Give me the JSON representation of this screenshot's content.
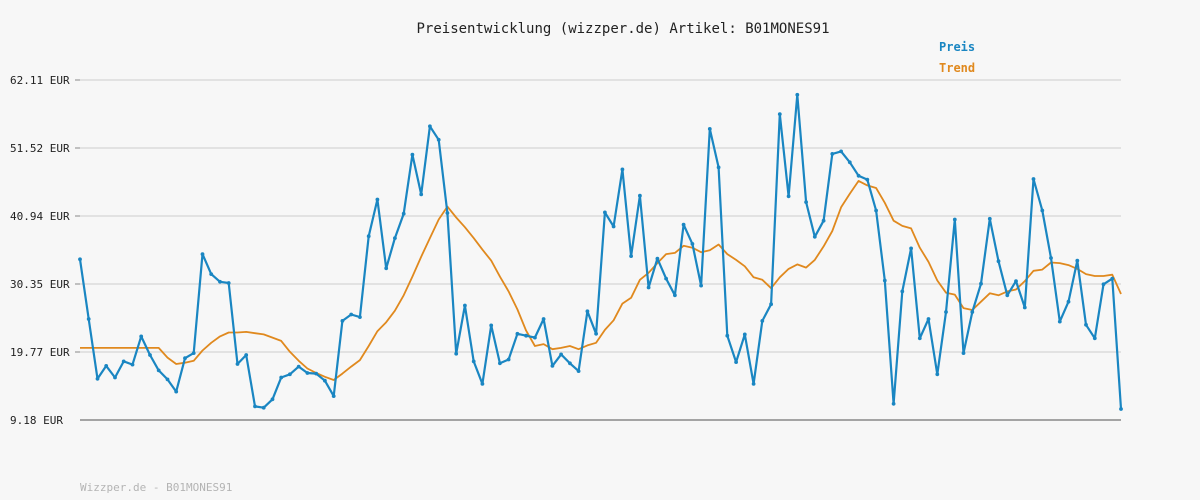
{
  "chart_data": {
    "type": "line",
    "title": "Preisentwicklung (wizzper.de) Artikel: B01MONES91",
    "footer": "Wizzper.de - B01MONES91",
    "y_ticks": [
      "62.11 EUR",
      "51.52 EUR",
      "40.94 EUR",
      "30.35 EUR",
      "19.77 EUR",
      "9.18 EUR"
    ],
    "ylim": [
      9.18,
      62.11
    ],
    "grid": true,
    "legend_position": "top-right",
    "colors": {
      "price": "#1a86c2",
      "trend": "#e0891e",
      "grid": "#e2e2e2",
      "axis": "#888888"
    },
    "series": [
      {
        "key": "price",
        "name": "Preis",
        "values": [
          34.2,
          24.9,
          15.6,
          17.6,
          15.8,
          18.3,
          17.8,
          22.2,
          19.3,
          16.9,
          15.5,
          13.6,
          18.8,
          19.6,
          35.0,
          31.9,
          30.7,
          30.5,
          17.9,
          19.3,
          11.3,
          11.1,
          12.4,
          15.8,
          16.3,
          17.5,
          16.5,
          16.4,
          15.3,
          12.9,
          24.6,
          25.6,
          25.2,
          37.8,
          43.5,
          32.8,
          37.5,
          41.3,
          50.5,
          44.3,
          54.9,
          52.8,
          41.4,
          19.5,
          27.0,
          18.3,
          14.8,
          23.9,
          18.0,
          18.6,
          22.6,
          22.3,
          22.0,
          24.9,
          17.6,
          19.4,
          18.0,
          16.8,
          26.1,
          22.6,
          41.5,
          39.3,
          48.2,
          34.7,
          44.1,
          29.8,
          34.3,
          31.2,
          28.6,
          39.6,
          36.6,
          30.1,
          54.5,
          48.5,
          22.3,
          18.2,
          22.5,
          14.8,
          24.6,
          27.2,
          56.8,
          44.0,
          59.8,
          43.1,
          37.7,
          40.2,
          50.6,
          51.0,
          49.3,
          47.2,
          46.6,
          41.8,
          30.9,
          11.7,
          29.2,
          35.9,
          21.9,
          24.9,
          16.3,
          26.0,
          40.4,
          19.6,
          26.0,
          30.4,
          40.5,
          33.9,
          28.6,
          30.8,
          26.7,
          46.7,
          41.8,
          34.4,
          24.5,
          27.6,
          34.0,
          24.0,
          21.9,
          30.3,
          31.2,
          10.9
        ]
      },
      {
        "key": "trend",
        "name": "Trend",
        "values": [
          20.4,
          20.4,
          20.4,
          20.4,
          20.4,
          20.4,
          20.4,
          20.4,
          20.4,
          20.4,
          18.9,
          17.9,
          18.1,
          18.4,
          20.0,
          21.2,
          22.2,
          22.8,
          22.8,
          22.9,
          22.7,
          22.5,
          22.0,
          21.5,
          19.8,
          18.4,
          17.2,
          16.5,
          15.9,
          15.4,
          16.4,
          17.5,
          18.5,
          20.7,
          23.0,
          24.4,
          26.2,
          28.6,
          31.5,
          34.6,
          37.5,
          40.4,
          42.4,
          40.7,
          39.2,
          37.5,
          35.7,
          34.0,
          31.5,
          29.2,
          26.4,
          23.1,
          20.7,
          21.0,
          20.2,
          20.4,
          20.7,
          20.2,
          20.8,
          21.2,
          23.2,
          24.7,
          27.3,
          28.2,
          31.0,
          32.1,
          33.6,
          35.0,
          35.2,
          36.3,
          36.0,
          35.3,
          35.6,
          36.5,
          35.0,
          34.1,
          33.1,
          31.4,
          31.0,
          29.7,
          31.4,
          32.7,
          33.4,
          32.9,
          34.1,
          36.2,
          38.6,
          42.3,
          44.4,
          46.4,
          45.7,
          45.3,
          43.0,
          40.2,
          39.4,
          39.0,
          36.0,
          33.8,
          30.9,
          29.0,
          28.7,
          26.6,
          26.3,
          27.6,
          28.9,
          28.6,
          29.2,
          29.5,
          30.8,
          32.4,
          32.6,
          33.7,
          33.6,
          33.3,
          32.7,
          31.9,
          31.6,
          31.6,
          31.8,
          28.8
        ]
      }
    ]
  }
}
